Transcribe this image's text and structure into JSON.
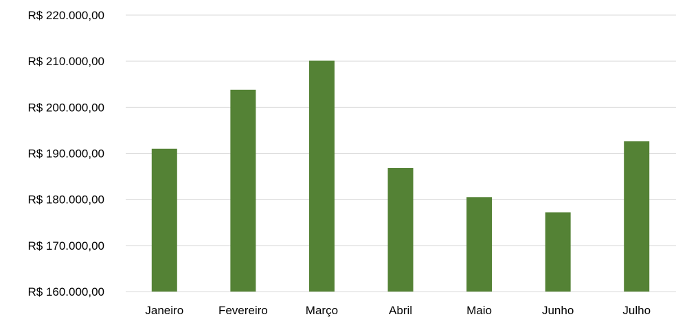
{
  "chart_data": {
    "type": "bar",
    "categories": [
      "Janeiro",
      "Fevereiro",
      "Março",
      "Abril",
      "Maio",
      "Junho",
      "Julho"
    ],
    "values": [
      191000,
      203800,
      210100,
      186800,
      180500,
      177200,
      192600
    ],
    "ylim": [
      160000,
      220000
    ],
    "yticks": [
      160000,
      170000,
      180000,
      190000,
      200000,
      210000,
      220000
    ],
    "ytick_labels": [
      "R$ 160.000,00",
      "R$ 170.000,00",
      "R$ 180.000,00",
      "R$ 190.000,00",
      "R$ 200.000,00",
      "R$ 210.000,00",
      "R$ 220.000,00"
    ],
    "bar_color": "#548235",
    "grid": true,
    "legend": "none"
  }
}
